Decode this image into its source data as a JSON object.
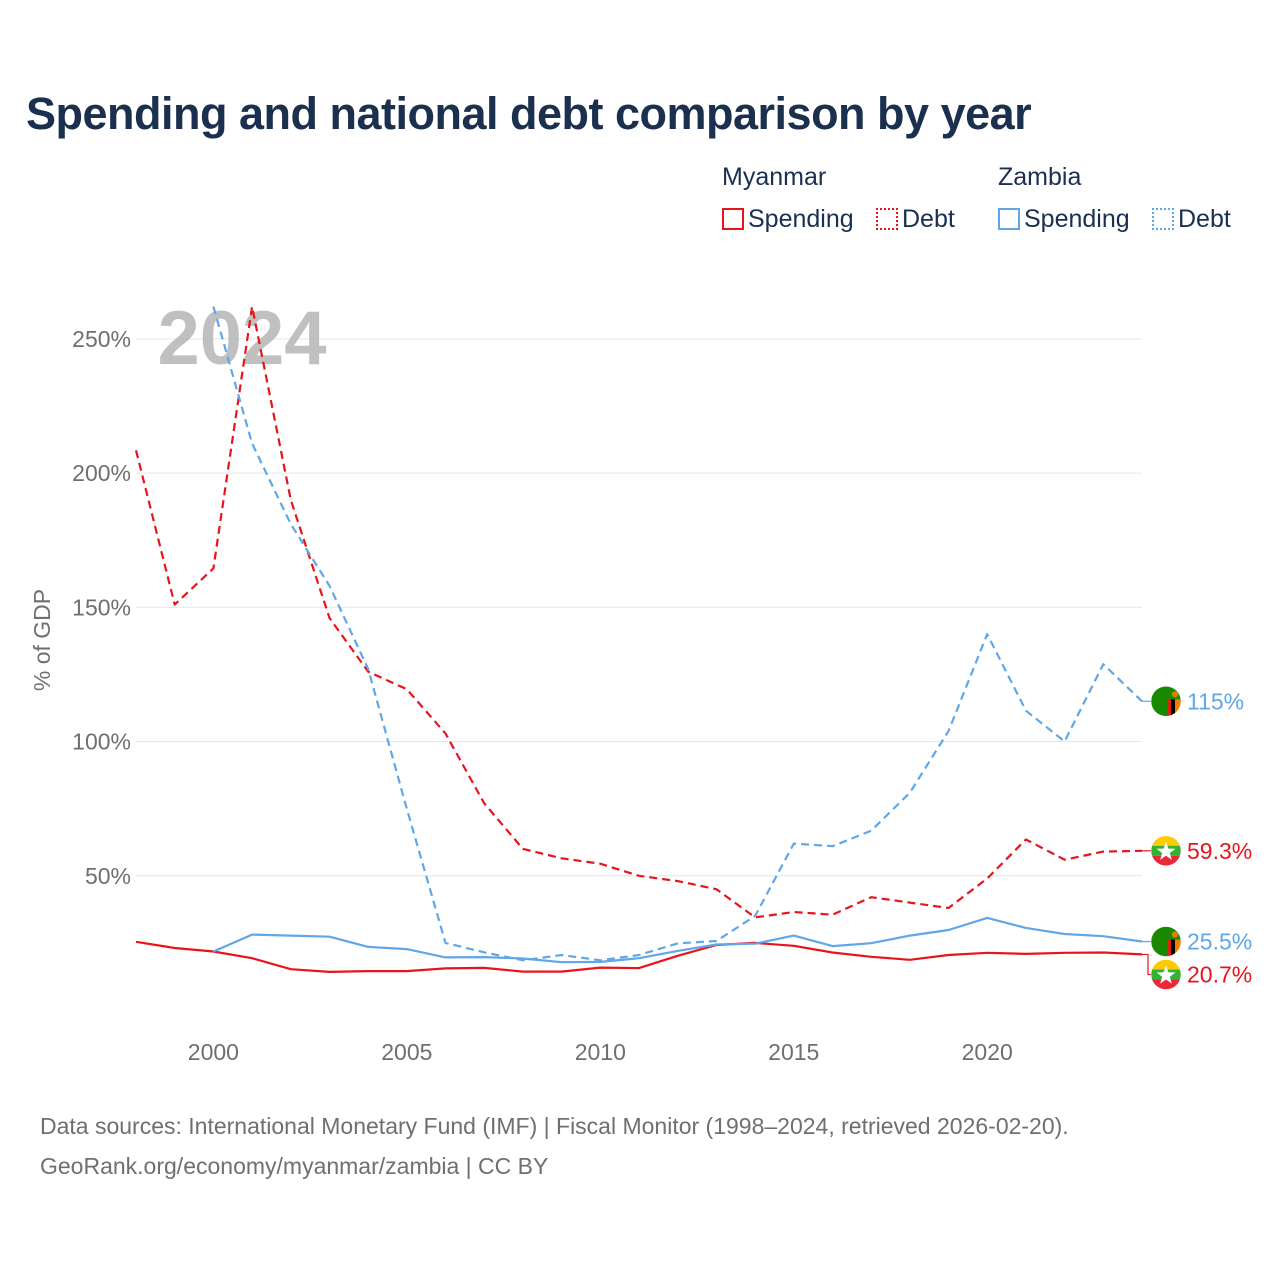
{
  "title": "Spending and national debt comparison by year",
  "legend": {
    "groups": [
      {
        "label": "Myanmar",
        "color": "#e8141b",
        "items": [
          {
            "label": "Spending",
            "style": "solid"
          },
          {
            "label": "Debt",
            "style": "dotted"
          }
        ]
      },
      {
        "label": "Zambia",
        "color": "#5fa7e6",
        "items": [
          {
            "label": "Spending",
            "style": "solid"
          },
          {
            "label": "Debt",
            "style": "dotted"
          }
        ]
      }
    ]
  },
  "year_overlay": "2024",
  "footer": {
    "line1": "Data sources: International Monetary Fund (IMF) | Fiscal Monitor (1998–2024, retrieved 2026-02-20).",
    "line2": "GeoRank.org/economy/myanmar/zambia | CC BY"
  },
  "chart_data": {
    "type": "line",
    "title": "Spending and national debt comparison by year",
    "xlabel": "",
    "ylabel": "% of GDP",
    "xlim": [
      1998,
      2024
    ],
    "ylim": [
      0,
      260
    ],
    "x_ticks": [
      2000,
      2005,
      2010,
      2015,
      2020
    ],
    "y_ticks": [
      50,
      100,
      150,
      200,
      250
    ],
    "y_tick_labels": [
      "50%",
      "100%",
      "150%",
      "200%",
      "250%"
    ],
    "grid": true,
    "legend_position": "top-right",
    "series": [
      {
        "name": "Myanmar Spending",
        "country": "Myanmar",
        "color": "#e8141b",
        "dash": "solid",
        "end_label": "20.7%",
        "x": [
          1998,
          1999,
          2000,
          2001,
          2002,
          2003,
          2004,
          2005,
          2006,
          2007,
          2008,
          2009,
          2010,
          2011,
          2012,
          2013,
          2014,
          2015,
          2016,
          2017,
          2018,
          2019,
          2020,
          2021,
          2022,
          2023,
          2024
        ],
        "values": [
          25.4,
          23.1,
          21.8,
          19.3,
          15.2,
          14.2,
          14.5,
          14.5,
          15.5,
          15.7,
          14.3,
          14.3,
          15.8,
          15.6,
          20.2,
          24.2,
          25.0,
          23.9,
          21.4,
          19.8,
          18.7,
          20.5,
          21.3,
          20.9,
          21.3,
          21.4,
          20.7
        ]
      },
      {
        "name": "Myanmar Debt",
        "country": "Myanmar",
        "color": "#e8141b",
        "dash": "dashed",
        "end_label": "59.3%",
        "x": [
          1998,
          1999,
          2000,
          2001,
          2002,
          2003,
          2004,
          2005,
          2006,
          2007,
          2008,
          2009,
          2010,
          2011,
          2012,
          2013,
          2014,
          2015,
          2016,
          2017,
          2018,
          2019,
          2020,
          2021,
          2022,
          2023,
          2024
        ],
        "values": [
          208.5,
          151.0,
          164.5,
          262.0,
          190.0,
          146.0,
          126.0,
          119.5,
          103.0,
          77.0,
          60.0,
          56.5,
          54.5,
          50.0,
          48.0,
          45.0,
          34.5,
          36.5,
          35.5,
          42.0,
          40.0,
          38.0,
          49.0,
          63.5,
          56.0,
          59.0,
          59.3
        ]
      },
      {
        "name": "Zambia Spending",
        "country": "Zambia",
        "color": "#5fa7e6",
        "dash": "solid",
        "end_label": "25.5%",
        "x": [
          2000,
          2001,
          2002,
          2003,
          2004,
          2005,
          2006,
          2007,
          2008,
          2009,
          2010,
          2011,
          2012,
          2013,
          2014,
          2015,
          2016,
          2017,
          2018,
          2019,
          2020,
          2021,
          2022,
          2023,
          2024
        ],
        "values": [
          21.8,
          28.1,
          27.7,
          27.3,
          23.5,
          22.7,
          19.6,
          19.7,
          19.2,
          17.8,
          17.9,
          19.3,
          22.0,
          24.4,
          24.7,
          27.7,
          23.8,
          24.9,
          27.7,
          29.8,
          34.3,
          30.6,
          28.3,
          27.5,
          25.5
        ]
      },
      {
        "name": "Zambia Debt",
        "country": "Zambia",
        "color": "#5fa7e6",
        "dash": "dashed",
        "end_label": "115%",
        "x": [
          2000,
          2001,
          2002,
          2003,
          2004,
          2005,
          2006,
          2007,
          2008,
          2009,
          2010,
          2011,
          2012,
          2013,
          2014,
          2015,
          2016,
          2017,
          2018,
          2019,
          2020,
          2021,
          2022,
          2023,
          2024
        ],
        "values": [
          262.0,
          211.0,
          181.0,
          158.0,
          127.0,
          75.0,
          25.0,
          21.5,
          18.5,
          20.5,
          18.5,
          20.5,
          24.8,
          25.7,
          35.0,
          62.0,
          61.0,
          66.8,
          80.9,
          103.9,
          140.0,
          111.5,
          100.0,
          128.8,
          115.0
        ]
      }
    ]
  }
}
